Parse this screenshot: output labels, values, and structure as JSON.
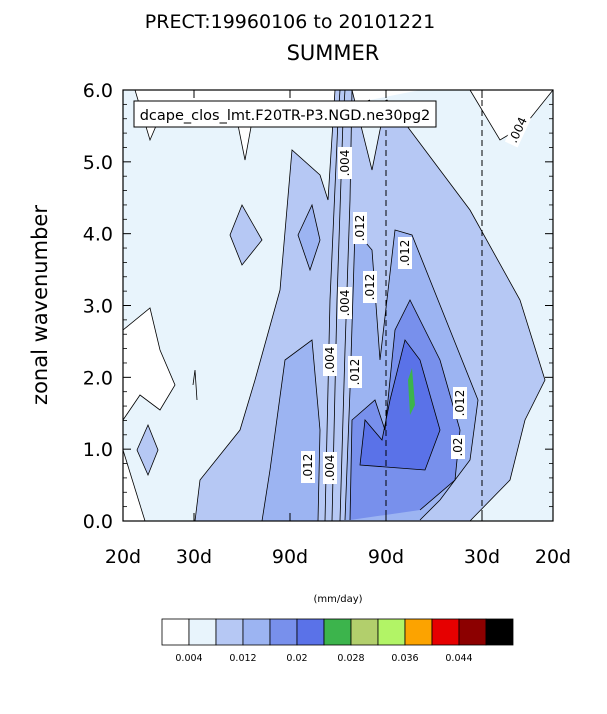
{
  "chart_data": {
    "type": "heatmap",
    "title": "PRECT:19960106 to 20101221",
    "subtitle": "SUMMER",
    "label_box": "dcape_clos_lmt.F20TR-P3.NGD.ne30pg2",
    "xlabel": "",
    "ylabel": "zonal wavenumber",
    "x_ticks": [
      "20d",
      "30d",
      "90d",
      "90d",
      "30d",
      "20d"
    ],
    "y_ticks": [
      "0.0",
      "1.0",
      "2.0",
      "3.0",
      "4.0",
      "5.0",
      "6.0"
    ],
    "ylim": [
      0,
      6
    ],
    "units": "(mm/day)",
    "colorbar": {
      "labels": [
        "0.004",
        "0.012",
        "0.02",
        "0.028",
        "0.036",
        "0.044"
      ],
      "colors": [
        "#ffffff",
        "#e8f4fc",
        "#b6c8f4",
        "#9cb4f2",
        "#7890ec",
        "#5a72e8",
        "#3cb44c",
        "#b2cf6c",
        "#b2f466",
        "#fca300",
        "#e60000",
        "#8c0000",
        "#000000"
      ]
    },
    "contour_labels": [
      ".004",
      ".004",
      ".004",
      ".012",
      ".012",
      ".012",
      ".012",
      ".012",
      ".012",
      ".02",
      ".004",
      ".004"
    ],
    "dashed_x_refs": [
      "90d",
      "30d"
    ],
    "peak_value_region": "~0.028 near wavenumber 1.5-2 (eastward 90d-30d band)"
  }
}
